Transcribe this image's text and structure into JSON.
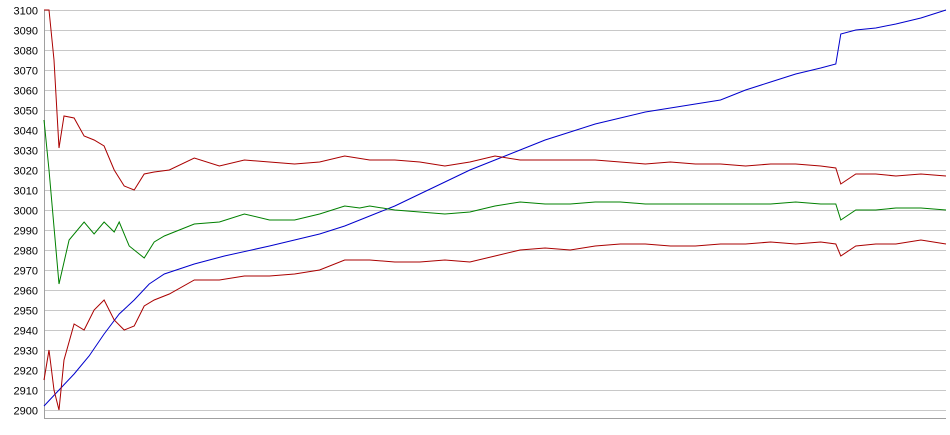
{
  "chart_data": {
    "type": "line",
    "title": "",
    "xlabel": "",
    "ylabel": "",
    "ylim": [
      2900,
      3100
    ],
    "xlim": [
      0,
      180
    ],
    "y_ticks": [
      3100,
      3090,
      3080,
      3070,
      3060,
      3050,
      3040,
      3030,
      3020,
      3010,
      3000,
      2990,
      2980,
      2970,
      2960,
      2950,
      2940,
      2930,
      2920,
      2910,
      2900
    ],
    "grid": true,
    "legend": "none",
    "series": [
      {
        "color": "#0000cc",
        "points": [
          [
            0,
            2902
          ],
          [
            3,
            2910
          ],
          [
            6,
            2918
          ],
          [
            9,
            2927
          ],
          [
            12,
            2938
          ],
          [
            15,
            2948
          ],
          [
            18,
            2955
          ],
          [
            21,
            2963
          ],
          [
            24,
            2968
          ],
          [
            30,
            2973
          ],
          [
            36,
            2977
          ],
          [
            45,
            2982
          ],
          [
            55,
            2988
          ],
          [
            60,
            2992
          ],
          [
            65,
            2997
          ],
          [
            70,
            3002
          ],
          [
            75,
            3008
          ],
          [
            80,
            3014
          ],
          [
            85,
            3020
          ],
          [
            90,
            3025
          ],
          [
            95,
            3030
          ],
          [
            100,
            3035
          ],
          [
            105,
            3039
          ],
          [
            110,
            3043
          ],
          [
            115,
            3046
          ],
          [
            120,
            3049
          ],
          [
            125,
            3051
          ],
          [
            130,
            3053
          ],
          [
            135,
            3055
          ],
          [
            140,
            3060
          ],
          [
            145,
            3064
          ],
          [
            150,
            3068
          ],
          [
            155,
            3071
          ],
          [
            158,
            3073
          ],
          [
            159,
            3088
          ],
          [
            162,
            3090
          ],
          [
            166,
            3091
          ],
          [
            170,
            3093
          ],
          [
            175,
            3096
          ],
          [
            180,
            3100
          ]
        ]
      },
      {
        "color": "#008000",
        "points": [
          [
            0,
            3045
          ],
          [
            1,
            3020
          ],
          [
            3,
            2963
          ],
          [
            5,
            2985
          ],
          [
            8,
            2994
          ],
          [
            10,
            2988
          ],
          [
            12,
            2994
          ],
          [
            14,
            2989
          ],
          [
            15,
            2994
          ],
          [
            17,
            2982
          ],
          [
            20,
            2976
          ],
          [
            22,
            2984
          ],
          [
            24,
            2987
          ],
          [
            27,
            2990
          ],
          [
            30,
            2993
          ],
          [
            35,
            2994
          ],
          [
            40,
            2998
          ],
          [
            45,
            2995
          ],
          [
            50,
            2995
          ],
          [
            55,
            2998
          ],
          [
            60,
            3002
          ],
          [
            63,
            3001
          ],
          [
            65,
            3002
          ],
          [
            70,
            3000
          ],
          [
            75,
            2999
          ],
          [
            80,
            2998
          ],
          [
            85,
            2999
          ],
          [
            90,
            3002
          ],
          [
            95,
            3004
          ],
          [
            100,
            3003
          ],
          [
            105,
            3003
          ],
          [
            110,
            3004
          ],
          [
            115,
            3004
          ],
          [
            120,
            3003
          ],
          [
            125,
            3003
          ],
          [
            130,
            3003
          ],
          [
            135,
            3003
          ],
          [
            140,
            3003
          ],
          [
            145,
            3003
          ],
          [
            150,
            3004
          ],
          [
            155,
            3003
          ],
          [
            158,
            3003
          ],
          [
            159,
            2995
          ],
          [
            162,
            3000
          ],
          [
            166,
            3000
          ],
          [
            170,
            3001
          ],
          [
            175,
            3001
          ],
          [
            180,
            3000
          ]
        ]
      },
      {
        "color": "#aa0000",
        "points": [
          [
            0,
            3100
          ],
          [
            1,
            3100
          ],
          [
            2,
            3075
          ],
          [
            3,
            3031
          ],
          [
            4,
            3047
          ],
          [
            6,
            3046
          ],
          [
            8,
            3037
          ],
          [
            10,
            3035
          ],
          [
            12,
            3032
          ],
          [
            14,
            3020
          ],
          [
            16,
            3012
          ],
          [
            18,
            3010
          ],
          [
            20,
            3018
          ],
          [
            22,
            3019
          ],
          [
            25,
            3020
          ],
          [
            30,
            3026
          ],
          [
            35,
            3022
          ],
          [
            40,
            3025
          ],
          [
            45,
            3024
          ],
          [
            50,
            3023
          ],
          [
            55,
            3024
          ],
          [
            60,
            3027
          ],
          [
            65,
            3025
          ],
          [
            70,
            3025
          ],
          [
            75,
            3024
          ],
          [
            80,
            3022
          ],
          [
            85,
            3024
          ],
          [
            90,
            3027
          ],
          [
            95,
            3025
          ],
          [
            100,
            3025
          ],
          [
            105,
            3025
          ],
          [
            110,
            3025
          ],
          [
            115,
            3024
          ],
          [
            120,
            3023
          ],
          [
            125,
            3024
          ],
          [
            130,
            3023
          ],
          [
            135,
            3023
          ],
          [
            140,
            3022
          ],
          [
            145,
            3023
          ],
          [
            150,
            3023
          ],
          [
            155,
            3022
          ],
          [
            158,
            3021
          ],
          [
            159,
            3013
          ],
          [
            162,
            3018
          ],
          [
            166,
            3018
          ],
          [
            170,
            3017
          ],
          [
            175,
            3018
          ],
          [
            180,
            3017
          ]
        ]
      },
      {
        "color": "#aa0000",
        "points": [
          [
            0,
            2915
          ],
          [
            1,
            2930
          ],
          [
            2,
            2910
          ],
          [
            3,
            2900
          ],
          [
            4,
            2925
          ],
          [
            6,
            2943
          ],
          [
            8,
            2940
          ],
          [
            10,
            2950
          ],
          [
            12,
            2955
          ],
          [
            14,
            2945
          ],
          [
            16,
            2940
          ],
          [
            18,
            2942
          ],
          [
            20,
            2952
          ],
          [
            22,
            2955
          ],
          [
            25,
            2958
          ],
          [
            30,
            2965
          ],
          [
            35,
            2965
          ],
          [
            40,
            2967
          ],
          [
            45,
            2967
          ],
          [
            50,
            2968
          ],
          [
            55,
            2970
          ],
          [
            60,
            2975
          ],
          [
            65,
            2975
          ],
          [
            70,
            2974
          ],
          [
            75,
            2974
          ],
          [
            80,
            2975
          ],
          [
            85,
            2974
          ],
          [
            90,
            2977
          ],
          [
            95,
            2980
          ],
          [
            100,
            2981
          ],
          [
            105,
            2980
          ],
          [
            110,
            2982
          ],
          [
            115,
            2983
          ],
          [
            120,
            2983
          ],
          [
            125,
            2982
          ],
          [
            130,
            2982
          ],
          [
            135,
            2983
          ],
          [
            140,
            2983
          ],
          [
            145,
            2984
          ],
          [
            150,
            2983
          ],
          [
            155,
            2984
          ],
          [
            158,
            2983
          ],
          [
            159,
            2977
          ],
          [
            162,
            2982
          ],
          [
            166,
            2983
          ],
          [
            170,
            2983
          ],
          [
            175,
            2985
          ],
          [
            180,
            2983
          ]
        ]
      }
    ]
  }
}
